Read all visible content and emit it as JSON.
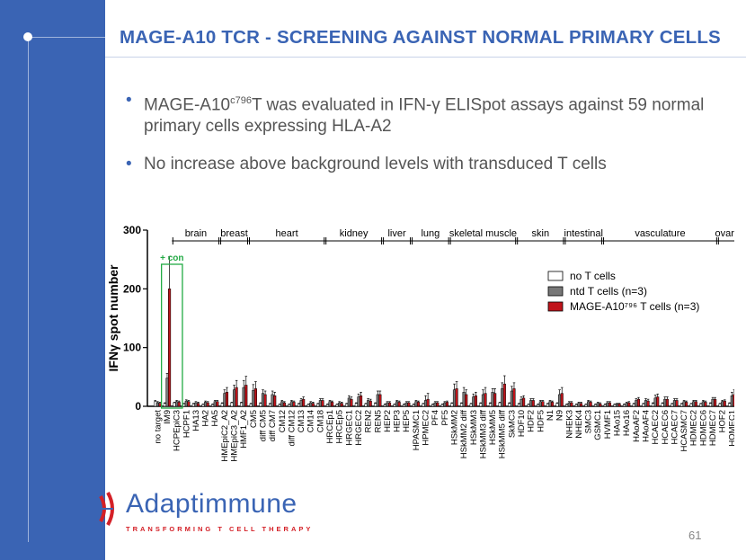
{
  "title": "MAGE-A10 TCR - SCREENING AGAINST NORMAL PRIMARY CELLS",
  "bullets": {
    "b1_pre": "MAGE-A10",
    "b1_sup": "c796",
    "b1_post": "T was evaluated in IFN-γ ELISpot assays against 59 normal primary cells expressing HLA-A2",
    "b2": "No increase above background levels with transduced T cells"
  },
  "logo": {
    "name": "Adaptimmune",
    "tagline": "TRANSFORMING T CELL THERAPY"
  },
  "page_number": "61",
  "colors": {
    "accent": "#3a64b4",
    "no_t": "#ffffff",
    "ntd": "#777777",
    "mage": "#c0141b",
    "pos_control_box": "#22aa44"
  },
  "chart_data": {
    "type": "bar",
    "ylabel": "IFNγ spot number",
    "ylim": [
      0,
      300
    ],
    "yticks": [
      0,
      100,
      200,
      300
    ],
    "positive_control_label": "+ con",
    "categories": [
      "no target",
      "IM9",
      "HCPEpiC3",
      "HCPF1",
      "HA13",
      "HA2",
      "HA5",
      "HMEpiC2_A2",
      "HMEpiC3_A2",
      "HMF1_A2",
      "CM5",
      "diff CM5",
      "diff CM7",
      "CM12",
      "diff CM12",
      "CM13",
      "CM14",
      "CM18",
      "HRCEp1",
      "HRCEp5",
      "HRGEC1",
      "HRGEC2",
      "REN2",
      "REN5",
      "HEP2",
      "HEP3",
      "HEP5",
      "HPASMC1",
      "HPMEC2",
      "PF4",
      "PF5",
      "HSkMM2",
      "HSkMM2 diff",
      "HSkMM3",
      "HSkMM3 diff",
      "HSkMM5",
      "HSkMM5 diff",
      "SkMC3",
      "HDF10",
      "HDF2",
      "HDF5",
      "N1",
      "N9",
      "NHEK3",
      "NHEK4",
      "SMC3",
      "GSMC1",
      "HVMF1",
      "HAo15",
      "HAo16",
      "HAoAF2",
      "HAoAF4",
      "HCAEC2",
      "HCAEC6",
      "HCAEC7",
      "HCASMC7",
      "HDMEC2",
      "HDMEC6",
      "HDMEC7",
      "HOF2",
      "HOMEC1"
    ],
    "series": [
      {
        "name": "no T cells",
        "values": [
          8,
          5,
          6,
          4,
          4,
          3,
          3,
          5,
          6,
          6,
          4,
          5,
          4,
          3,
          3,
          4,
          3,
          4,
          3,
          3,
          4,
          5,
          4,
          5,
          3,
          3,
          3,
          3,
          4,
          3,
          3,
          5,
          5,
          4,
          5,
          5,
          6,
          5,
          4,
          3,
          3,
          4,
          5,
          3,
          3,
          3,
          3,
          3,
          3,
          3,
          4,
          4,
          5,
          5,
          4,
          4,
          4,
          4,
          5,
          4,
          5
        ]
      },
      {
        "name": "ntd T cells (n=3)",
        "values": [
          6,
          48,
          8,
          9,
          6,
          7,
          8,
          22,
          28,
          32,
          27,
          22,
          20,
          8,
          8,
          10,
          6,
          10,
          8,
          6,
          14,
          16,
          10,
          20,
          6,
          8,
          6,
          8,
          10,
          6,
          6,
          28,
          24,
          16,
          20,
          24,
          30,
          26,
          12,
          10,
          8,
          8,
          20,
          6,
          5,
          8,
          5,
          6,
          4,
          5,
          10,
          10,
          14,
          12,
          10,
          8,
          8,
          8,
          12,
          8,
          18
        ]
      },
      {
        "name": "MAGE-A10⁷⁹⁶ T cells (n=3)",
        "values": [
          5,
          200,
          7,
          8,
          5,
          6,
          8,
          24,
          32,
          36,
          30,
          20,
          18,
          6,
          7,
          12,
          5,
          10,
          7,
          5,
          12,
          18,
          9,
          20,
          6,
          7,
          6,
          7,
          12,
          6,
          7,
          30,
          20,
          18,
          22,
          22,
          38,
          30,
          14,
          10,
          8,
          7,
          22,
          6,
          5,
          7,
          4,
          6,
          4,
          6,
          12,
          9,
          16,
          12,
          10,
          7,
          8,
          7,
          12,
          9,
          20
        ]
      }
    ],
    "errors": [
      [
        2,
        1,
        1,
        1,
        1,
        1,
        1,
        1,
        1,
        1,
        1,
        1,
        1,
        1,
        1,
        1,
        1,
        1,
        1,
        1,
        1,
        1,
        1,
        1,
        1,
        1,
        1,
        1,
        1,
        1,
        1,
        1,
        1,
        1,
        1,
        1,
        1,
        1,
        1,
        1,
        1,
        1,
        1,
        1,
        1,
        1,
        1,
        1,
        1,
        1,
        1,
        1,
        1,
        1,
        1,
        1,
        1,
        1,
        1,
        1,
        1
      ],
      [
        2,
        8,
        2,
        2,
        2,
        2,
        2,
        6,
        8,
        12,
        10,
        6,
        6,
        2,
        2,
        3,
        2,
        3,
        2,
        2,
        4,
        5,
        3,
        6,
        2,
        2,
        2,
        2,
        8,
        2,
        2,
        10,
        8,
        5,
        8,
        6,
        10,
        8,
        4,
        3,
        2,
        2,
        8,
        2,
        2,
        2,
        2,
        2,
        1,
        2,
        3,
        3,
        5,
        4,
        3,
        2,
        2,
        2,
        3,
        2,
        6
      ],
      [
        2,
        55,
        2,
        2,
        2,
        2,
        2,
        8,
        12,
        15,
        12,
        6,
        6,
        2,
        2,
        4,
        2,
        3,
        2,
        2,
        4,
        6,
        3,
        6,
        2,
        2,
        2,
        2,
        10,
        2,
        2,
        12,
        8,
        6,
        10,
        8,
        14,
        10,
        4,
        3,
        2,
        2,
        10,
        2,
        2,
        2,
        2,
        2,
        1,
        2,
        3,
        3,
        5,
        4,
        3,
        2,
        2,
        2,
        3,
        2,
        8
      ]
    ],
    "groups": [
      {
        "label": "brain",
        "from": 2,
        "to": 6
      },
      {
        "label": "breast",
        "from": 7,
        "to": 9
      },
      {
        "label": "heart",
        "from": 10,
        "to": 17
      },
      {
        "label": "kidney",
        "from": 18,
        "to": 23
      },
      {
        "label": "liver",
        "from": 24,
        "to": 26
      },
      {
        "label": "lung",
        "from": 27,
        "to": 30
      },
      {
        "label": "skeletal muscle",
        "from": 31,
        "to": 37
      },
      {
        "label": "skin",
        "from": 38,
        "to": 42
      },
      {
        "label": "intestinal",
        "from": 43,
        "to": 46
      },
      {
        "label": "vasculature",
        "from": 47,
        "to": 58
      },
      {
        "label": "ovary",
        "from": 59,
        "to": 60
      }
    ],
    "legend_position": "right"
  }
}
